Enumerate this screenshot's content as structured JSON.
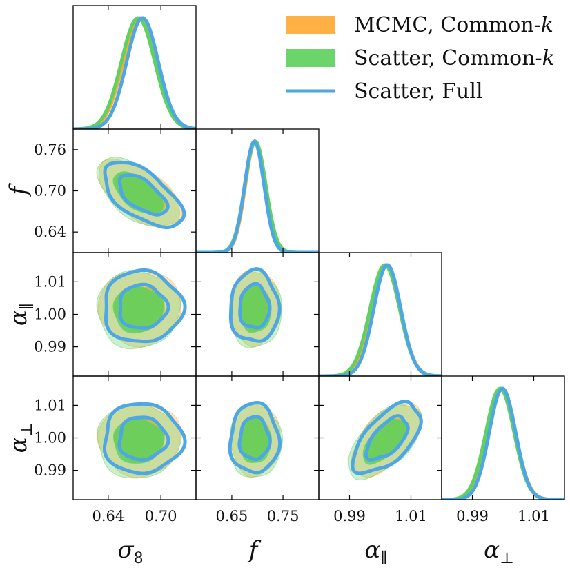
{
  "chart_data": {
    "type": "corner",
    "parameters": [
      {
        "key": "sigma8",
        "label": "σ8",
        "label_main": "σ",
        "label_sub": "8",
        "range": [
          0.6,
          0.74
        ],
        "ticks": [
          0.64,
          0.7
        ],
        "tick_labels": [
          "0.64",
          "0.70"
        ]
      },
      {
        "key": "f",
        "label": "f",
        "label_main": "f",
        "label_sub": "",
        "range": [
          0.58,
          0.82
        ],
        "ticks": [
          0.65,
          0.75
        ],
        "tick_labels": [
          "0.65",
          "0.75"
        ],
        "y_ticks": [
          0.64,
          0.7,
          0.76
        ],
        "y_tick_labels": [
          "0.64",
          "0.70",
          "0.76"
        ],
        "y_range": [
          0.61,
          0.79
        ]
      },
      {
        "key": "alpha_par",
        "label": "α∥",
        "label_main": "α",
        "label_sub": "∥",
        "range": [
          0.98,
          1.02
        ],
        "ticks": [
          0.99,
          1.01
        ],
        "tick_labels": [
          "0.99",
          "1.01"
        ],
        "y_ticks": [
          0.99,
          1.0,
          1.01
        ],
        "y_tick_labels": [
          "0.99",
          "1.00",
          "1.01"
        ],
        "y_range": [
          0.981,
          1.019
        ]
      },
      {
        "key": "alpha_perp",
        "label": "α⊥",
        "label_main": "α",
        "label_sub": "⊥",
        "range": [
          0.98,
          1.02
        ],
        "ticks": [
          0.99,
          1.01
        ],
        "tick_labels": [
          "0.99",
          "1.01"
        ],
        "y_ticks": [
          0.99,
          1.0,
          1.01
        ],
        "y_tick_labels": [
          "0.99",
          "1.00",
          "1.01"
        ],
        "y_range": [
          0.981,
          1.019
        ]
      }
    ],
    "series": [
      {
        "name": "MCMC, Common-k",
        "legend_main": "MCMC, Common-",
        "legend_italic": "k",
        "style": "filled",
        "color": "#FFAA33",
        "mean": [
          0.676,
          0.696,
          1.002,
          0.9995
        ],
        "sigma": [
          0.019,
          0.0195,
          0.0046,
          0.0045
        ],
        "correlations": {
          "0-1": -0.58,
          "0-2": 0.0,
          "0-3": 0.0,
          "1-2": 0.0,
          "1-3": 0.0,
          "2-3": 0.58
        }
      },
      {
        "name": "Scatter, Common-k",
        "legend_main": "Scatter, Common-",
        "legend_italic": "k",
        "style": "filled",
        "color": "#5ED15E",
        "mean": [
          0.674,
          0.696,
          1.0015,
          0.999
        ],
        "sigma": [
          0.019,
          0.0205,
          0.0048,
          0.0046
        ],
        "correlations": {
          "0-1": -0.58,
          "0-2": 0.0,
          "0-3": 0.0,
          "1-2": 0.0,
          "1-3": 0.0,
          "2-3": 0.58
        }
      },
      {
        "name": "Scatter, Full",
        "legend_main": "Scatter, Full",
        "legend_italic": "",
        "style": "line",
        "color": "#4DA6E6",
        "mean": [
          0.679,
          0.694,
          1.0023,
          0.9998
        ],
        "sigma": [
          0.018,
          0.019,
          0.0044,
          0.0043
        ],
        "correlations": {
          "0-1": -0.6,
          "0-2": 0.0,
          "0-3": 0.0,
          "1-2": 0.0,
          "1-3": 0.0,
          "2-3": 0.6
        }
      }
    ],
    "contour_levels": [
      "68%",
      "95%"
    ],
    "legend_position": "top-right",
    "grid": false
  }
}
